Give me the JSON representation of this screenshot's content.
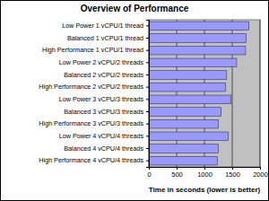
{
  "chart_data": {
    "type": "bar",
    "orientation": "horizontal",
    "title": "Overview of Performance",
    "x_label": "Time in seconds (lower is better)",
    "categories": [
      "Low Power 1 vCPU/1 thread",
      "Balanced 1 vCPU/1 thread",
      "High Performance 1 vCPU/1 thread",
      "Low Power 2 vCPU/2 threads",
      "Balanced 2 vCPU/2 threads",
      "High Performance 2 vCPU/2 threads",
      "Low Power 3 vCPU/3 threads",
      "Balanced 3 vCPU/3 threads",
      "High Performance 3 vCPU/3 threads",
      "Low Power 4 vCPU/4 threads",
      "Balanced 4 vCPU/4 threads",
      "High Performance 4 vCPU/4 threads"
    ],
    "values": [
      1800,
      1750,
      1740,
      1580,
      1400,
      1380,
      1480,
      1300,
      1250,
      1430,
      1250,
      1230
    ],
    "color": "#9999ff",
    "xlim": [
      0,
      2000
    ],
    "xticks": [
      0,
      500,
      1000,
      1500,
      2000
    ],
    "grid": true
  }
}
